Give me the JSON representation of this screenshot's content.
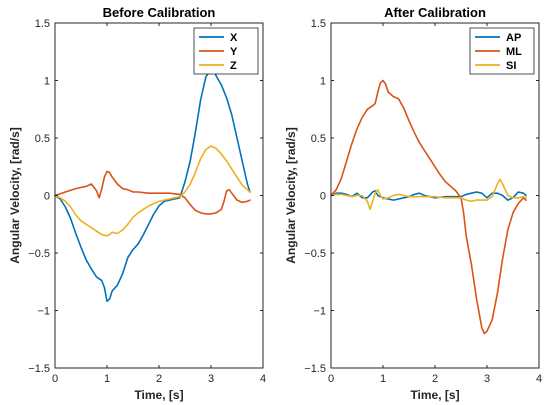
{
  "chart_data": [
    {
      "type": "line",
      "title": "Before Calibration",
      "xlabel": "Time, [s]",
      "ylabel": "Angular Velocity, [rad/s]",
      "xlim": [
        0,
        4
      ],
      "ylim": [
        -1.5,
        1.5
      ],
      "xticks": [
        0,
        1,
        2,
        3,
        4
      ],
      "yticks": [
        -1.5,
        -1,
        -0.5,
        0,
        0.5,
        1,
        1.5
      ],
      "xtick_labels": [
        "0",
        "1",
        "2",
        "3",
        "4"
      ],
      "ytick_labels": [
        "-1.5",
        "-1",
        "-0.5",
        "0",
        "0.5",
        "1",
        "1.5"
      ],
      "grid": false,
      "legend": "top-right",
      "series": [
        {
          "name": "X",
          "color": "#0072BD",
          "points": [
            [
              0,
              0
            ],
            [
              0.1,
              -0.03
            ],
            [
              0.2,
              -0.1
            ],
            [
              0.3,
              -0.2
            ],
            [
              0.4,
              -0.33
            ],
            [
              0.5,
              -0.45
            ],
            [
              0.6,
              -0.56
            ],
            [
              0.7,
              -0.64
            ],
            [
              0.8,
              -0.71
            ],
            [
              0.9,
              -0.74
            ],
            [
              0.95,
              -0.8
            ],
            [
              1.0,
              -0.92
            ],
            [
              1.05,
              -0.9
            ],
            [
              1.1,
              -0.83
            ],
            [
              1.2,
              -0.78
            ],
            [
              1.3,
              -0.68
            ],
            [
              1.4,
              -0.54
            ],
            [
              1.5,
              -0.47
            ],
            [
              1.6,
              -0.42
            ],
            [
              1.7,
              -0.34
            ],
            [
              1.8,
              -0.25
            ],
            [
              1.9,
              -0.16
            ],
            [
              2.0,
              -0.09
            ],
            [
              2.1,
              -0.05
            ],
            [
              2.2,
              -0.04
            ],
            [
              2.3,
              -0.03
            ],
            [
              2.4,
              -0.02
            ],
            [
              2.5,
              0.12
            ],
            [
              2.6,
              0.3
            ],
            [
              2.7,
              0.55
            ],
            [
              2.8,
              0.83
            ],
            [
              2.9,
              1.03
            ],
            [
              3.0,
              1.1
            ],
            [
              3.05,
              1.09
            ],
            [
              3.1,
              1.04
            ],
            [
              3.2,
              0.96
            ],
            [
              3.3,
              0.85
            ],
            [
              3.4,
              0.7
            ],
            [
              3.5,
              0.5
            ],
            [
              3.6,
              0.3
            ],
            [
              3.7,
              0.1
            ],
            [
              3.75,
              0.03
            ]
          ]
        },
        {
          "name": "Y",
          "color": "#D95319",
          "points": [
            [
              0,
              0
            ],
            [
              0.2,
              0.03
            ],
            [
              0.4,
              0.06
            ],
            [
              0.6,
              0.08
            ],
            [
              0.7,
              0.1
            ],
            [
              0.8,
              0.04
            ],
            [
              0.85,
              -0.02
            ],
            [
              0.9,
              0.06
            ],
            [
              0.95,
              0.16
            ],
            [
              1.0,
              0.21
            ],
            [
              1.05,
              0.2
            ],
            [
              1.1,
              0.16
            ],
            [
              1.2,
              0.1
            ],
            [
              1.3,
              0.06
            ],
            [
              1.4,
              0.05
            ],
            [
              1.5,
              0.03
            ],
            [
              1.6,
              0.03
            ],
            [
              1.8,
              0.02
            ],
            [
              2.0,
              0.02
            ],
            [
              2.2,
              0.02
            ],
            [
              2.4,
              0.01
            ],
            [
              2.5,
              -0.02
            ],
            [
              2.6,
              -0.08
            ],
            [
              2.7,
              -0.13
            ],
            [
              2.8,
              -0.15
            ],
            [
              2.9,
              -0.16
            ],
            [
              3.0,
              -0.16
            ],
            [
              3.1,
              -0.15
            ],
            [
              3.2,
              -0.12
            ],
            [
              3.25,
              -0.05
            ],
            [
              3.3,
              0.04
            ],
            [
              3.35,
              0.05
            ],
            [
              3.4,
              0.02
            ],
            [
              3.5,
              -0.04
            ],
            [
              3.6,
              -0.06
            ],
            [
              3.7,
              -0.05
            ],
            [
              3.75,
              -0.04
            ]
          ]
        },
        {
          "name": "Z",
          "color": "#EDB120",
          "points": [
            [
              0,
              0
            ],
            [
              0.1,
              -0.02
            ],
            [
              0.2,
              -0.05
            ],
            [
              0.3,
              -0.1
            ],
            [
              0.4,
              -0.17
            ],
            [
              0.5,
              -0.22
            ],
            [
              0.6,
              -0.25
            ],
            [
              0.7,
              -0.28
            ],
            [
              0.8,
              -0.31
            ],
            [
              0.9,
              -0.34
            ],
            [
              1.0,
              -0.35
            ],
            [
              1.05,
              -0.34
            ],
            [
              1.1,
              -0.32
            ],
            [
              1.2,
              -0.33
            ],
            [
              1.3,
              -0.3
            ],
            [
              1.4,
              -0.25
            ],
            [
              1.5,
              -0.19
            ],
            [
              1.6,
              -0.15
            ],
            [
              1.7,
              -0.12
            ],
            [
              1.8,
              -0.09
            ],
            [
              1.9,
              -0.07
            ],
            [
              2.0,
              -0.05
            ],
            [
              2.1,
              -0.04
            ],
            [
              2.2,
              -0.03
            ],
            [
              2.3,
              -0.02
            ],
            [
              2.4,
              -0.01
            ],
            [
              2.5,
              0.03
            ],
            [
              2.6,
              0.1
            ],
            [
              2.7,
              0.2
            ],
            [
              2.8,
              0.32
            ],
            [
              2.9,
              0.4
            ],
            [
              3.0,
              0.43
            ],
            [
              3.1,
              0.41
            ],
            [
              3.2,
              0.36
            ],
            [
              3.3,
              0.3
            ],
            [
              3.4,
              0.23
            ],
            [
              3.5,
              0.16
            ],
            [
              3.6,
              0.09
            ],
            [
              3.7,
              0.05
            ],
            [
              3.75,
              0.03
            ]
          ]
        }
      ]
    },
    {
      "type": "line",
      "title": "After Calibration",
      "xlabel": "Time, [s]",
      "ylabel": "Angular Velocity, [rad/s]",
      "xlim": [
        0,
        4
      ],
      "ylim": [
        -1.5,
        1.5
      ],
      "xticks": [
        0,
        1,
        2,
        3,
        4
      ],
      "yticks": [
        -1.5,
        -1,
        -0.5,
        0,
        0.5,
        1,
        1.5
      ],
      "xtick_labels": [
        "0",
        "1",
        "2",
        "3",
        "4"
      ],
      "ytick_labels": [
        "-1.5",
        "-1",
        "-0.5",
        "0",
        "0.5",
        "1",
        "1.5"
      ],
      "grid": false,
      "legend": "top-right",
      "series": [
        {
          "name": "AP",
          "color": "#0072BD",
          "points": [
            [
              0,
              0
            ],
            [
              0.1,
              0.02
            ],
            [
              0.2,
              0.02
            ],
            [
              0.3,
              0.01
            ],
            [
              0.4,
              -0.01
            ],
            [
              0.5,
              0.02
            ],
            [
              0.6,
              -0.02
            ],
            [
              0.7,
              -0.02
            ],
            [
              0.8,
              0.03
            ],
            [
              0.85,
              0.04
            ],
            [
              0.9,
              0
            ],
            [
              1.0,
              -0.02
            ],
            [
              1.1,
              -0.03
            ],
            [
              1.2,
              -0.04
            ],
            [
              1.3,
              -0.03
            ],
            [
              1.4,
              -0.02
            ],
            [
              1.5,
              -0.01
            ],
            [
              1.6,
              0.01
            ],
            [
              1.7,
              0.02
            ],
            [
              1.8,
              0
            ],
            [
              1.9,
              -0.01
            ],
            [
              2.0,
              -0.02
            ],
            [
              2.2,
              -0.01
            ],
            [
              2.4,
              -0.01
            ],
            [
              2.5,
              -0.01
            ],
            [
              2.6,
              0.01
            ],
            [
              2.7,
              0.02
            ],
            [
              2.8,
              0.03
            ],
            [
              2.9,
              0.02
            ],
            [
              3.0,
              -0.02
            ],
            [
              3.1,
              0.02
            ],
            [
              3.2,
              0.02
            ],
            [
              3.3,
              0
            ],
            [
              3.4,
              -0.04
            ],
            [
              3.5,
              -0.02
            ],
            [
              3.6,
              0.03
            ],
            [
              3.7,
              0.02
            ],
            [
              3.75,
              0
            ]
          ]
        },
        {
          "name": "ML",
          "color": "#D95319",
          "points": [
            [
              0,
              0
            ],
            [
              0.1,
              0.05
            ],
            [
              0.2,
              0.15
            ],
            [
              0.3,
              0.3
            ],
            [
              0.4,
              0.45
            ],
            [
              0.5,
              0.58
            ],
            [
              0.6,
              0.68
            ],
            [
              0.7,
              0.75
            ],
            [
              0.8,
              0.78
            ],
            [
              0.85,
              0.8
            ],
            [
              0.9,
              0.9
            ],
            [
              0.95,
              0.98
            ],
            [
              1.0,
              1.0
            ],
            [
              1.05,
              0.97
            ],
            [
              1.1,
              0.9
            ],
            [
              1.2,
              0.86
            ],
            [
              1.3,
              0.84
            ],
            [
              1.4,
              0.76
            ],
            [
              1.5,
              0.65
            ],
            [
              1.6,
              0.55
            ],
            [
              1.7,
              0.46
            ],
            [
              1.8,
              0.39
            ],
            [
              1.9,
              0.32
            ],
            [
              2.0,
              0.25
            ],
            [
              2.1,
              0.18
            ],
            [
              2.2,
              0.12
            ],
            [
              2.3,
              0.08
            ],
            [
              2.4,
              0.04
            ],
            [
              2.5,
              -0.02
            ],
            [
              2.55,
              -0.15
            ],
            [
              2.6,
              -0.35
            ],
            [
              2.7,
              -0.6
            ],
            [
              2.8,
              -0.9
            ],
            [
              2.9,
              -1.15
            ],
            [
              2.95,
              -1.2
            ],
            [
              3.0,
              -1.18
            ],
            [
              3.1,
              -1.08
            ],
            [
              3.2,
              -0.85
            ],
            [
              3.3,
              -0.55
            ],
            [
              3.4,
              -0.3
            ],
            [
              3.5,
              -0.15
            ],
            [
              3.6,
              -0.07
            ],
            [
              3.7,
              -0.02
            ],
            [
              3.75,
              -0.04
            ]
          ]
        },
        {
          "name": "SI",
          "color": "#EDB120",
          "points": [
            [
              0,
              0
            ],
            [
              0.1,
              0.01
            ],
            [
              0.2,
              0.01
            ],
            [
              0.3,
              0
            ],
            [
              0.4,
              -0.01
            ],
            [
              0.5,
              0
            ],
            [
              0.6,
              0
            ],
            [
              0.7,
              -0.05
            ],
            [
              0.75,
              -0.12
            ],
            [
              0.8,
              -0.05
            ],
            [
              0.85,
              0.02
            ],
            [
              0.9,
              0.05
            ],
            [
              0.95,
              0
            ],
            [
              1.0,
              -0.03
            ],
            [
              1.1,
              -0.02
            ],
            [
              1.2,
              0
            ],
            [
              1.3,
              0.01
            ],
            [
              1.4,
              0
            ],
            [
              1.5,
              -0.01
            ],
            [
              1.6,
              -0.01
            ],
            [
              1.8,
              -0.01
            ],
            [
              2.0,
              -0.01
            ],
            [
              2.2,
              -0.02
            ],
            [
              2.4,
              -0.02
            ],
            [
              2.5,
              -0.02
            ],
            [
              2.6,
              -0.04
            ],
            [
              2.7,
              -0.05
            ],
            [
              2.8,
              -0.04
            ],
            [
              2.9,
              -0.04
            ],
            [
              3.0,
              -0.04
            ],
            [
              3.1,
              -0.01
            ],
            [
              3.2,
              0.1
            ],
            [
              3.25,
              0.14
            ],
            [
              3.3,
              0.1
            ],
            [
              3.4,
              0
            ],
            [
              3.5,
              -0.02
            ],
            [
              3.6,
              -0.02
            ],
            [
              3.7,
              -0.01
            ],
            [
              3.75,
              -0.02
            ]
          ]
        }
      ]
    }
  ]
}
